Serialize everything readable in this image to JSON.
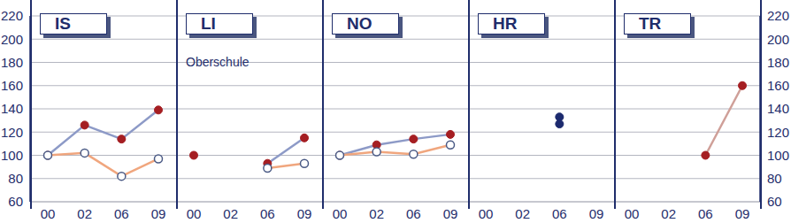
{
  "chart_data": [
    {
      "type": "line",
      "title": "IS",
      "categories": [
        "00",
        "02",
        "06",
        "09"
      ],
      "ylim": [
        60,
        220
      ],
      "yticks": [
        60,
        80,
        100,
        120,
        140,
        160,
        180,
        200,
        220
      ],
      "grid": true,
      "series": [
        {
          "color": "#8d9ac7",
          "marker": "filled",
          "line_style": "solid",
          "values": [
            100,
            126,
            114,
            139
          ]
        },
        {
          "color": "#f0a67e",
          "marker": "open",
          "line_style": "solid",
          "values": [
            100,
            102,
            82,
            97
          ]
        }
      ]
    },
    {
      "type": "line",
      "title": "LI",
      "annotations": [
        "Oberschule"
      ],
      "categories": [
        "00",
        "02",
        "06",
        "09"
      ],
      "ylim": [
        60,
        220
      ],
      "yticks": [
        60,
        80,
        100,
        120,
        140,
        160,
        180,
        200,
        220
      ],
      "grid": true,
      "tick_labels": "x",
      "series": [
        {
          "color": "#8d9ac7",
          "marker": "filled",
          "line_style": "solid",
          "values": [
            100,
            null,
            93,
            115
          ]
        },
        {
          "color": "#f0a67e",
          "marker": "open",
          "line_style": "solid",
          "values": [
            null,
            null,
            89,
            93
          ]
        }
      ]
    },
    {
      "type": "line",
      "title": "NO",
      "categories": [
        "00",
        "02",
        "06",
        "09"
      ],
      "ylim": [
        60,
        220
      ],
      "yticks": [
        60,
        80,
        100,
        120,
        140,
        160,
        180,
        200,
        220
      ],
      "grid": true,
      "tick_labels": "x",
      "series": [
        {
          "color": "#8d9ac7",
          "marker": "filled",
          "line_style": "solid",
          "values": [
            100,
            109,
            114,
            118
          ]
        },
        {
          "color": "#f0a67e",
          "marker": "open",
          "line_style": "solid",
          "values": [
            100,
            103,
            101,
            109
          ]
        }
      ]
    },
    {
      "type": "line",
      "title": "HR",
      "categories": [
        "00",
        "02",
        "06",
        "09"
      ],
      "ylim": [
        60,
        220
      ],
      "yticks": [
        60,
        80,
        100,
        120,
        140,
        160,
        180,
        200,
        220
      ],
      "grid": true,
      "tick_labels": "x",
      "series": [
        {
          "color": "#1c2a6e",
          "marker": "filled",
          "line_style": "none",
          "values": [
            null,
            null,
            133,
            null
          ]
        },
        {
          "color": "#1c2a6e",
          "marker": "filled",
          "line_style": "none",
          "values": [
            null,
            null,
            127,
            null
          ]
        }
      ]
    },
    {
      "type": "line",
      "title": "TR",
      "categories": [
        "00",
        "02",
        "06",
        "09"
      ],
      "ylim": [
        60,
        220
      ],
      "yticks": [
        60,
        80,
        100,
        120,
        140,
        160,
        180,
        200,
        220
      ],
      "grid": true,
      "series": [
        {
          "color": "#cf9f98",
          "marker": "filled",
          "line_style": "solid",
          "values": [
            null,
            null,
            100,
            160
          ]
        }
      ]
    }
  ]
}
